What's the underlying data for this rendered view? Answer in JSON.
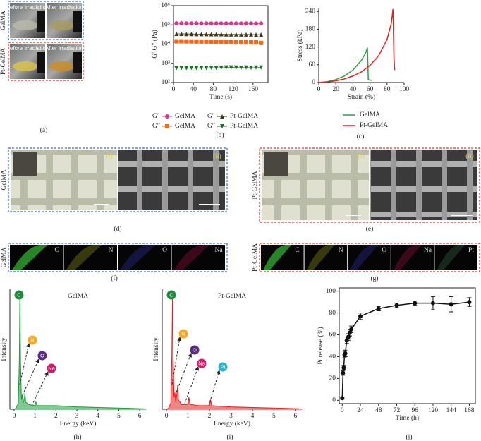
{
  "photos": {
    "a": {
      "panel": "(a)",
      "rows": [
        {
          "name": "GelMA",
          "left": "Before irradiation",
          "right": "After irradiation"
        },
        {
          "name": "Pt-GelMA",
          "left": "Before irradiation",
          "right": "After irradiation"
        }
      ]
    },
    "d": {
      "panel": "(d)",
      "name": "GelMA",
      "tags": [
        "(i)",
        "(ii)"
      ]
    },
    "e": {
      "panel": "(e)",
      "name": "Pt-GelMA",
      "tags": [
        "(i)",
        "(ii)"
      ]
    },
    "f": {
      "panel": "(f)",
      "name": "GelMA",
      "elements": [
        "C",
        "N",
        "O",
        "Na"
      ]
    },
    "g": {
      "panel": "(g)",
      "name": "Pt-GelMA",
      "elements": [
        "C",
        "N",
        "O",
        "Na",
        "Pt"
      ]
    }
  },
  "chart_data": [
    {
      "type": "line",
      "panel": "(b)",
      "x_label": "Time (s)",
      "y_label": "G′ G′′ (Pa)",
      "log_y": true,
      "xlim": [
        0,
        190
      ],
      "xticks": [
        0,
        40,
        80,
        120,
        160
      ],
      "ylim": [
        100,
        1000000
      ],
      "yticks": [
        {
          "value": 100,
          "label": "10²"
        },
        {
          "value": 1000,
          "label": "10³"
        },
        {
          "value": 10000,
          "label": "10⁴"
        },
        {
          "value": 100000,
          "label": "10⁵"
        },
        {
          "value": 1000000,
          "label": "10⁶"
        }
      ],
      "x": [
        6,
        16,
        26,
        36,
        46,
        56,
        66,
        76,
        86,
        96,
        106,
        116,
        126,
        136,
        146,
        156,
        166,
        176
      ],
      "series": [
        {
          "modulus": "G′",
          "name": "GelMA",
          "color": "#e0348a",
          "marker": "circle",
          "values": [
            120000,
            120000,
            119000,
            119000,
            120000,
            119000,
            119000,
            118000,
            119000,
            119000,
            118000,
            119000,
            119000,
            118000,
            118000,
            118000,
            117000,
            118000
          ]
        },
        {
          "modulus": "G′",
          "name": "Pt-GelMA",
          "color": "#3d3a1a",
          "marker": "triangle",
          "values": [
            34000,
            34000,
            33500,
            33500,
            33000,
            33000,
            33000,
            32500,
            32500,
            32500,
            32000,
            32000,
            32000,
            31500,
            31500,
            31500,
            31000,
            31000
          ]
        },
        {
          "modulus": "G′′",
          "name": "GelMA",
          "color": "#f26a1b",
          "marker": "square",
          "values": [
            14000,
            14000,
            13800,
            13800,
            13600,
            13600,
            13500,
            13400,
            13300,
            13300,
            13200,
            13100,
            13000,
            13000,
            12900,
            12800,
            12600,
            11500
          ]
        },
        {
          "modulus": "G′′",
          "name": "Pt-GelMA",
          "color": "#1e6b2a",
          "marker": "down-triangle",
          "values": [
            560,
            570,
            560,
            580,
            570,
            580,
            570,
            590,
            580,
            590,
            600,
            610,
            600,
            590,
            600,
            590,
            600,
            600
          ]
        }
      ]
    },
    {
      "type": "line",
      "panel": "(c)",
      "x_label": "Strain (%)",
      "y_label": "Stress (kPa)",
      "xlim": [
        0,
        100
      ],
      "xticks": [
        0,
        20,
        40,
        60,
        80,
        100
      ],
      "ylim": [
        0,
        250
      ],
      "yticks": [
        0,
        60,
        120,
        180,
        240
      ],
      "series": [
        {
          "name": "GelMA",
          "color": "#2ea043",
          "x": [
            0,
            10,
            20,
            30,
            40,
            50,
            55,
            57,
            58,
            60,
            63
          ],
          "values": [
            0,
            3,
            10,
            22,
            42,
            75,
            100,
            118,
            10,
            8,
            8
          ]
        },
        {
          "name": "Pt-GelMA",
          "color": "#e02424",
          "x": [
            0,
            10,
            20,
            30,
            40,
            50,
            60,
            70,
            80,
            85,
            87,
            88,
            89
          ],
          "values": [
            0,
            2,
            6,
            12,
            22,
            36,
            58,
            90,
            145,
            200,
            248,
            90,
            42
          ]
        }
      ]
    },
    {
      "type": "area",
      "panel": "(h)",
      "title": "GelMA",
      "x_label": "Energy (keV)",
      "y_label": "Intensity",
      "xlim": [
        -0.2,
        6.3
      ],
      "xticks": [
        0,
        1,
        2,
        3,
        4,
        5,
        6
      ],
      "ylim": [
        0,
        100
      ],
      "color": "#1a9a3a",
      "x": [
        0,
        0.1,
        0.2,
        0.25,
        0.28,
        0.31,
        0.35,
        0.39,
        0.43,
        0.5,
        0.52,
        0.55,
        0.7,
        1.0,
        1.04,
        1.1,
        1.5,
        2,
        2.5,
        3,
        4,
        5,
        6,
        6.3
      ],
      "values": [
        0,
        1,
        5,
        40,
        95,
        40,
        8,
        12,
        5,
        10,
        14,
        6,
        4,
        3,
        6,
        3,
        3,
        3,
        2.5,
        2,
        1.5,
        1,
        0.5,
        0.3
      ],
      "annotations": [
        {
          "text": "C",
          "color": "#1e8a3c"
        },
        {
          "text": "N",
          "color": "#f5a623"
        },
        {
          "text": "O",
          "color": "#5a2a82"
        },
        {
          "text": "Na",
          "color": "#d6186a"
        }
      ]
    },
    {
      "type": "area",
      "panel": "(i)",
      "title": "Pt-GelMA",
      "x_label": "Energy (keV)",
      "y_label": "Intensity",
      "xlim": [
        -0.2,
        6.3
      ],
      "xticks": [
        0,
        1,
        2,
        3,
        4,
        5,
        6
      ],
      "ylim": [
        0,
        100
      ],
      "color": "#e0201f",
      "x": [
        0,
        0.1,
        0.2,
        0.25,
        0.28,
        0.31,
        0.35,
        0.39,
        0.43,
        0.5,
        0.52,
        0.55,
        0.7,
        1.0,
        1.04,
        1.1,
        1.5,
        2.0,
        2.05,
        2.1,
        2.5,
        3,
        4,
        5,
        6,
        6.3
      ],
      "values": [
        0,
        1,
        5,
        45,
        95,
        45,
        10,
        14,
        6,
        15,
        20,
        8,
        4,
        4,
        10,
        4,
        3,
        3,
        8,
        3,
        2.5,
        2,
        1.5,
        1,
        0.5,
        0.3
      ],
      "annotations": [
        {
          "text": "C",
          "color": "#1e8a3c"
        },
        {
          "text": "N",
          "color": "#f5a623"
        },
        {
          "text": "O",
          "color": "#5a2a82"
        },
        {
          "text": "Na",
          "color": "#d6186a"
        },
        {
          "text": "Pt",
          "color": "#2ab0c8"
        }
      ]
    },
    {
      "type": "errorline",
      "panel": "(j)",
      "x_label": "Time (h)",
      "y_label": "Pt release (%)",
      "xlim": [
        -4,
        176
      ],
      "xticks": [
        0,
        24,
        48,
        72,
        96,
        120,
        144,
        168
      ],
      "ylim": [
        -3,
        103
      ],
      "yticks": [
        0,
        20,
        40,
        60,
        80,
        100
      ],
      "color": "#111111",
      "x": [
        0,
        1,
        2,
        3,
        4,
        6,
        8,
        10,
        12,
        24,
        48,
        72,
        96,
        120,
        144,
        168
      ],
      "values": [
        2,
        25,
        30,
        42,
        43,
        55,
        58,
        62,
        65,
        77,
        84,
        87,
        89,
        89,
        88,
        90
      ],
      "errors": [
        1,
        2,
        2,
        3,
        3,
        3,
        3,
        3,
        3,
        3,
        2,
        2,
        2,
        6,
        7,
        4
      ]
    }
  ]
}
